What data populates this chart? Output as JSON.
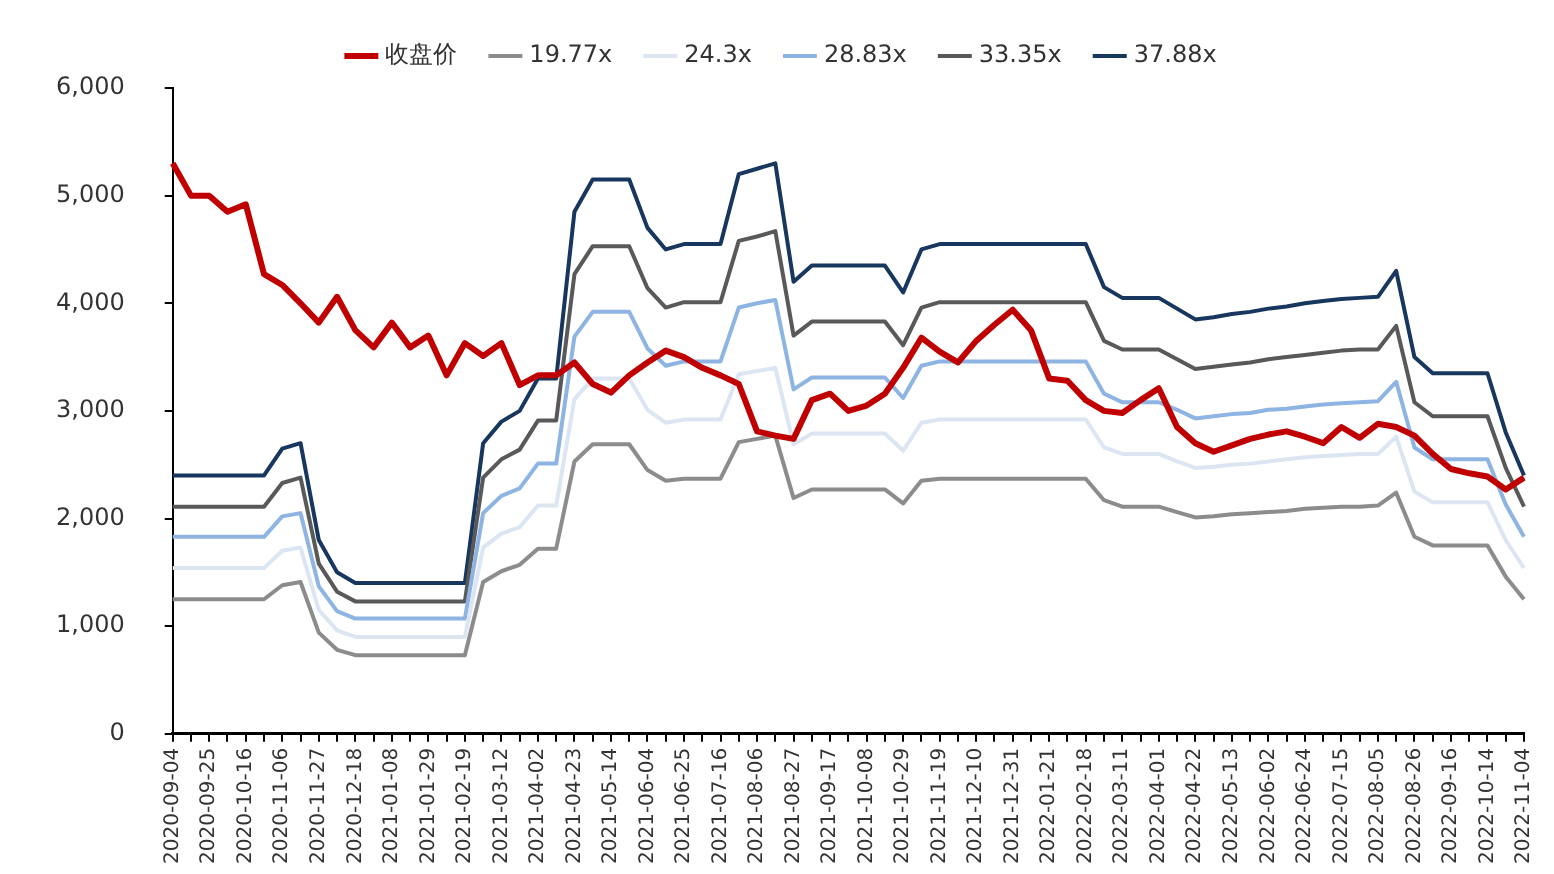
{
  "chart_data": {
    "type": "line",
    "categories": [
      "2020-09-04",
      null,
      "2020-09-25",
      null,
      "2020-10-16",
      null,
      "2020-11-06",
      null,
      "2020-11-27",
      null,
      "2020-12-18",
      null,
      "2021-01-08",
      null,
      "2021-01-29",
      null,
      "2021-02-19",
      null,
      "2021-03-12",
      null,
      "2021-04-02",
      null,
      "2021-04-23",
      null,
      "2021-05-14",
      null,
      "2021-06-04",
      null,
      "2021-06-25",
      null,
      "2021-07-16",
      null,
      "2021-08-06",
      null,
      "2021-08-27",
      null,
      "2021-09-17",
      null,
      "2021-10-08",
      null,
      "2021-10-29",
      null,
      "2021-11-19",
      null,
      "2021-12-10",
      null,
      "2021-12-31",
      null,
      "2022-01-21",
      null,
      "2022-02-18",
      null,
      "2022-03-11",
      null,
      "2022-04-01",
      null,
      "2022-04-22",
      null,
      "2022-05-13",
      null,
      "2022-06-02",
      null,
      "2022-06-24",
      null,
      "2022-07-15",
      null,
      "2022-08-05",
      null,
      "2022-08-26",
      null,
      "2022-09-16",
      null,
      "2022-10-14",
      null,
      "2022-11-04"
    ],
    "series": [
      {
        "name": "收盘价",
        "color": "#c00000",
        "values": [
          5300,
          5000,
          5000,
          4850,
          4920,
          4270,
          4170,
          4000,
          3820,
          4060,
          3750,
          3590,
          3820,
          3590,
          3700,
          3330,
          3630,
          3510,
          3630,
          3240,
          3330,
          3330,
          3450,
          3250,
          3170,
          3330,
          3450,
          3560,
          3500,
          3400,
          3330,
          3250,
          2810,
          2770,
          2740,
          3100,
          3160,
          3000,
          3050,
          3160,
          3400,
          3680,
          3550,
          3450,
          3650,
          3800,
          3940,
          3750,
          3300,
          3280,
          3100,
          3000,
          2980,
          3100,
          3210,
          2850,
          2700,
          2620,
          2680,
          2740,
          2780,
          2810,
          2760,
          2700,
          2850,
          2750,
          2880,
          2850,
          2770,
          2600,
          2460,
          2420,
          2390,
          2270,
          2380
        ]
      },
      {
        "name": "19.77x",
        "color": "#8c8c8c",
        "values": [
          1250,
          1250,
          1250,
          1250,
          1250,
          1250,
          1380,
          1410,
          940,
          780,
          730,
          730,
          730,
          730,
          730,
          730,
          730,
          1410,
          1510,
          1570,
          1720,
          1720,
          2530,
          2690,
          2690,
          2690,
          2450,
          2350,
          2370,
          2370,
          2370,
          2710,
          2740,
          2770,
          2190,
          2270,
          2270,
          2270,
          2270,
          2270,
          2140,
          2350,
          2370,
          2370,
          2370,
          2370,
          2370,
          2370,
          2370,
          2370,
          2370,
          2170,
          2110,
          2110,
          2110,
          2060,
          2010,
          2020,
          2040,
          2050,
          2060,
          2070,
          2090,
          2100,
          2110,
          2110,
          2120,
          2240,
          1830,
          1750,
          1750,
          1750,
          1750,
          1460,
          1250
        ]
      },
      {
        "name": "24.3x",
        "color": "#dce6f2",
        "values": [
          1540,
          1540,
          1540,
          1540,
          1540,
          1540,
          1700,
          1730,
          1150,
          960,
          900,
          900,
          900,
          900,
          900,
          900,
          900,
          1730,
          1860,
          1920,
          2120,
          2120,
          3110,
          3300,
          3300,
          3300,
          3010,
          2890,
          2920,
          2920,
          2920,
          3340,
          3370,
          3400,
          2690,
          2790,
          2790,
          2790,
          2790,
          2790,
          2630,
          2890,
          2920,
          2920,
          2920,
          2920,
          2920,
          2920,
          2920,
          2920,
          2920,
          2660,
          2600,
          2600,
          2600,
          2530,
          2470,
          2480,
          2500,
          2510,
          2530,
          2550,
          2570,
          2580,
          2590,
          2600,
          2600,
          2760,
          2250,
          2150,
          2150,
          2150,
          2150,
          1800,
          1540
        ]
      },
      {
        "name": "28.83x",
        "color": "#8db4e2",
        "values": [
          1830,
          1830,
          1830,
          1830,
          1830,
          1830,
          2020,
          2050,
          1370,
          1140,
          1070,
          1070,
          1070,
          1070,
          1070,
          1070,
          1070,
          2050,
          2210,
          2280,
          2510,
          2510,
          3690,
          3920,
          3920,
          3920,
          3580,
          3420,
          3460,
          3460,
          3460,
          3960,
          4000,
          4030,
          3200,
          3310,
          3310,
          3310,
          3310,
          3310,
          3120,
          3420,
          3460,
          3460,
          3460,
          3460,
          3460,
          3460,
          3460,
          3460,
          3460,
          3160,
          3080,
          3080,
          3080,
          3010,
          2930,
          2950,
          2970,
          2980,
          3010,
          3020,
          3040,
          3060,
          3070,
          3080,
          3090,
          3270,
          2660,
          2550,
          2550,
          2550,
          2550,
          2130,
          1830
        ]
      },
      {
        "name": "33.35x",
        "color": "#595959",
        "values": [
          2110,
          2110,
          2110,
          2110,
          2110,
          2110,
          2330,
          2380,
          1580,
          1320,
          1230,
          1230,
          1230,
          1230,
          1230,
          1230,
          1230,
          2380,
          2550,
          2640,
          2910,
          2910,
          4270,
          4530,
          4530,
          4530,
          4140,
          3960,
          4010,
          4010,
          4010,
          4580,
          4620,
          4670,
          3700,
          3830,
          3830,
          3830,
          3830,
          3830,
          3610,
          3960,
          4010,
          4010,
          4010,
          4010,
          4010,
          4010,
          4010,
          4010,
          4010,
          3650,
          3570,
          3570,
          3570,
          3480,
          3390,
          3410,
          3430,
          3450,
          3480,
          3500,
          3520,
          3540,
          3560,
          3570,
          3570,
          3790,
          3080,
          2950,
          2950,
          2950,
          2950,
          2470,
          2110
        ]
      },
      {
        "name": "37.88x",
        "color": "#17375e",
        "values": [
          2400,
          2400,
          2400,
          2400,
          2400,
          2400,
          2650,
          2700,
          1800,
          1500,
          1400,
          1400,
          1400,
          1400,
          1400,
          1400,
          1400,
          2700,
          2900,
          3000,
          3300,
          3300,
          4850,
          5150,
          5150,
          5150,
          4700,
          4500,
          4550,
          4550,
          4550,
          5200,
          5250,
          5300,
          4200,
          4350,
          4350,
          4350,
          4350,
          4350,
          4100,
          4500,
          4550,
          4550,
          4550,
          4550,
          4550,
          4550,
          4550,
          4550,
          4550,
          4150,
          4050,
          4050,
          4050,
          3950,
          3850,
          3870,
          3900,
          3920,
          3950,
          3970,
          4000,
          4020,
          4040,
          4050,
          4060,
          4300,
          3500,
          3350,
          3350,
          3350,
          3350,
          2800,
          2400
        ]
      }
    ],
    "ylim": [
      0,
      6000
    ],
    "yticks": [
      0,
      {
        "value": 1000,
        "label": "1,000"
      },
      {
        "value": 2000,
        "label": "2,000"
      },
      {
        "value": 3000,
        "label": "3,000"
      },
      {
        "value": 4000,
        "label": "4,000"
      },
      {
        "value": 5000,
        "label": "5,000"
      },
      {
        "value": 6000,
        "label": "6,000"
      }
    ],
    "legend": "top",
    "grid": false,
    "marker": "none",
    "line_style": "solid"
  }
}
